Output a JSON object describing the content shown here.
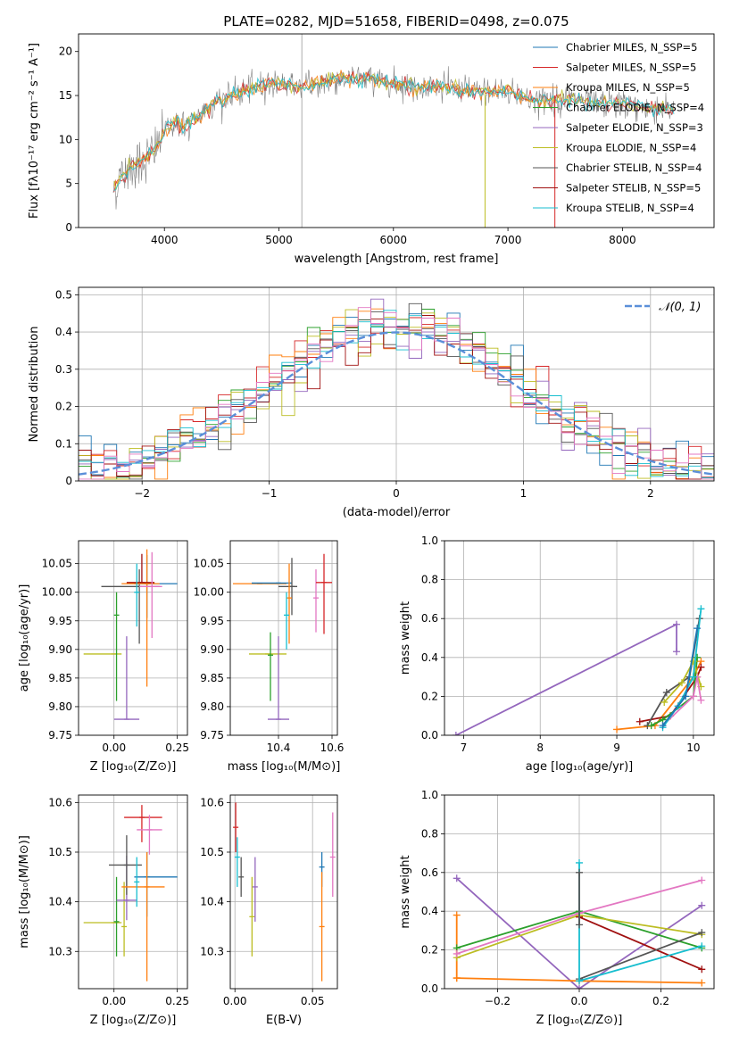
{
  "figure_title": "PLATE=0282, MJD=51658, FIBERID=0498, z=0.075",
  "colors": {
    "chabrier_miles": "#1f77b4",
    "salpeter_miles": "#d62728",
    "kroupa_miles": "#ff7f0e",
    "chabrier_elodie": "#2ca02c",
    "salpeter_elodie": "#9467bd",
    "kroupa_elodie": "#bcbd22",
    "chabrier_stelib": "#555555",
    "salpeter_stelib": "#a01010",
    "kroupa_stelib": "#17becf",
    "pink": "#e377c2",
    "normal_curve": "#5b8fd9",
    "data_spectrum": "#808080"
  },
  "chart_data": [
    {
      "id": "spectrum",
      "type": "line",
      "title": "PLATE=0282, MJD=51658, FIBERID=0498, z=0.075",
      "xlabel": "wavelength [Angstrom, rest frame]",
      "ylabel": "Flux [fλ10⁻¹⁷ erg cm⁻² s⁻¹ A⁻¹]",
      "xlim": [
        3250,
        8800
      ],
      "ylim": [
        0,
        22
      ],
      "xticks": [
        4000,
        5000,
        6000,
        7000,
        8000
      ],
      "yticks": [
        0,
        5,
        10,
        15,
        20
      ],
      "legend_position": "right",
      "legend": [
        {
          "label": "Chabrier MILES, N_SSP=5",
          "color": "#1f77b4"
        },
        {
          "label": "Salpeter MILES, N_SSP=5",
          "color": "#d62728"
        },
        {
          "label": "Kroupa MILES, N_SSP=5",
          "color": "#ff7f0e"
        },
        {
          "label": "Chabrier ELODIE, N_SSP=4",
          "color": "#2ca02c"
        },
        {
          "label": "Salpeter ELODIE, N_SSP=3",
          "color": "#9467bd"
        },
        {
          "label": "Kroupa ELODIE, N_SSP=4",
          "color": "#bcbd22"
        },
        {
          "label": "Chabrier STELIB, N_SSP=4",
          "color": "#555555"
        },
        {
          "label": "Salpeter STELIB, N_SSP=5",
          "color": "#a01010"
        },
        {
          "label": "Kroupa STELIB, N_SSP=4",
          "color": "#17becf"
        }
      ],
      "continuum_points": {
        "x": [
          3550,
          3700,
          3800,
          3900,
          4000,
          4100,
          4200,
          4300,
          4400,
          4600,
          4800,
          5000,
          5200,
          5400,
          5600,
          5800,
          6000,
          6200,
          6400,
          6600,
          6800,
          7000,
          7200,
          7400,
          7600,
          7800,
          8000,
          8200,
          8400
        ],
        "y": [
          4.5,
          7.0,
          7.5,
          8.5,
          11.0,
          12.0,
          11.5,
          12.5,
          14.0,
          15.0,
          16.0,
          16.5,
          16.0,
          16.5,
          17.0,
          17.0,
          16.5,
          16.0,
          16.0,
          15.5,
          15.5,
          15.5,
          14.5,
          14.5,
          14.5,
          14.0,
          14.0,
          13.5,
          13.5
        ]
      }
    },
    {
      "id": "residuals",
      "type": "line",
      "xlabel": "(data-model)/error",
      "ylabel": "Normed distribution",
      "xlim": [
        -2.5,
        2.5
      ],
      "ylim": [
        0,
        0.52
      ],
      "xticks": [
        -2,
        -1,
        0,
        1,
        2
      ],
      "yticks": [
        0.0,
        0.1,
        0.2,
        0.3,
        0.4,
        0.5
      ],
      "grid": true,
      "legend": [
        {
          "label": "𝒩(0, 1)",
          "style": "dashed"
        }
      ],
      "legend_position": "top-right",
      "normal_mu": 0,
      "normal_sigma": 1
    },
    {
      "id": "age_vs_Z",
      "type": "scatter",
      "xlabel": "Z [log₁₀(Z/Z⊙)]",
      "ylabel": "age  [log₁₀(age/yr)]",
      "xlim": [
        -0.14,
        0.29
      ],
      "ylim": [
        9.75,
        10.09
      ],
      "xticks": [
        0.0,
        0.25
      ],
      "xticklabels": [
        "0.00",
        "0.25"
      ],
      "yticks": [
        9.75,
        9.8,
        9.85,
        9.9,
        9.95,
        10.0,
        10.05
      ],
      "yticklabels": [
        "9.75",
        "9.80",
        "9.85",
        "9.90",
        "9.95",
        "10.00",
        "10.05"
      ],
      "grid": true,
      "points": [
        {
          "x": 0.0,
          "y": 9.892,
          "xerr": [
            0.12,
            0.03
          ],
          "yerr": [
            0.0,
            0.0
          ],
          "color": "#bcbd22"
        },
        {
          "x": 0.01,
          "y": 9.96,
          "xerr": [
            0.0,
            0.0
          ],
          "yerr": [
            0.15,
            0.04
          ],
          "color": "#2ca02c"
        },
        {
          "x": 0.05,
          "y": 9.778,
          "xerr": [
            0.05,
            0.05
          ],
          "yerr": [
            0.0,
            0.145
          ],
          "color": "#9467bd"
        },
        {
          "x": 0.1,
          "y": 10.01,
          "xerr": [
            0.15,
            0.08
          ],
          "yerr": [
            0.1,
            0.03
          ],
          "color": "#555555"
        },
        {
          "x": 0.13,
          "y": 10.015,
          "xerr": [
            0.05,
            0.12
          ],
          "yerr": [
            0.06,
            0.05
          ],
          "color": "#1f77b4"
        },
        {
          "x": 0.13,
          "y": 10.015,
          "xerr": [
            0.1,
            0.05
          ],
          "yerr": [
            0.18,
            0.06
          ],
          "color": "#ff7f0e"
        },
        {
          "x": 0.11,
          "y": 10.017,
          "xerr": [
            0.06,
            0.05
          ],
          "yerr": [
            0.0,
            0.05
          ],
          "color": "#a01010"
        },
        {
          "x": 0.15,
          "y": 10.01,
          "xerr": [
            0.05,
            0.04
          ],
          "yerr": [
            0.09,
            0.06
          ],
          "color": "#e377c2"
        },
        {
          "x": 0.09,
          "y": 10.0,
          "xerr": [
            0.0,
            0.0
          ],
          "yerr": [
            0.06,
            0.05
          ],
          "color": "#17becf"
        }
      ]
    },
    {
      "id": "age_vs_mass",
      "type": "scatter",
      "xlabel": "mass [log₁₀(M/M⊙)]",
      "xlim": [
        10.22,
        10.62
      ],
      "ylim": [
        9.75,
        10.09
      ],
      "xticks": [
        10.4,
        10.6
      ],
      "xticklabels": [
        "10.4",
        "10.6"
      ],
      "yticks": [
        9.75,
        9.8,
        9.85,
        9.9,
        9.95,
        10.0,
        10.05
      ],
      "yticklabels": [
        "9.75",
        "9.80",
        "9.85",
        "9.90",
        "9.95",
        "10.00",
        "10.05"
      ],
      "grid": true,
      "points": [
        {
          "x": 10.36,
          "y": 9.892,
          "xerr": [
            0.07,
            0.07
          ],
          "yerr": [
            0.0,
            0.0
          ],
          "color": "#bcbd22"
        },
        {
          "x": 10.37,
          "y": 9.89,
          "xerr": [
            0.0,
            0.0
          ],
          "yerr": [
            0.08,
            0.04
          ],
          "color": "#2ca02c"
        },
        {
          "x": 10.4,
          "y": 9.778,
          "xerr": [
            0.04,
            0.04
          ],
          "yerr": [
            0.0,
            0.145
          ],
          "color": "#9467bd"
        },
        {
          "x": 10.33,
          "y": 10.015,
          "xerr": [
            0.1,
            0.1
          ],
          "yerr": [
            0.0,
            0.0
          ],
          "color": "#ff7f0e"
        },
        {
          "x": 10.4,
          "y": 10.016,
          "xerr": [
            0.1,
            0.05
          ],
          "yerr": [
            0.0,
            0.0
          ],
          "color": "#1f77b4"
        },
        {
          "x": 10.45,
          "y": 10.01,
          "xerr": [
            0.05,
            0.02
          ],
          "yerr": [
            0.05,
            0.05
          ],
          "color": "#555555"
        },
        {
          "x": 10.44,
          "y": 9.99,
          "xerr": [
            0.0,
            0.0
          ],
          "yerr": [
            0.08,
            0.06
          ],
          "color": "#ff7f0e"
        },
        {
          "x": 10.43,
          "y": 9.96,
          "xerr": [
            0.0,
            0.0
          ],
          "yerr": [
            0.06,
            0.04
          ],
          "color": "#17becf"
        },
        {
          "x": 10.54,
          "y": 9.99,
          "xerr": [
            0.0,
            0.0
          ],
          "yerr": [
            0.06,
            0.05
          ],
          "color": "#e377c2"
        },
        {
          "x": 10.57,
          "y": 10.017,
          "xerr": [
            0.03,
            0.03
          ],
          "yerr": [
            0.09,
            0.05
          ],
          "color": "#d62728"
        }
      ]
    },
    {
      "id": "massweight_vs_age",
      "type": "line",
      "xlabel": "age  [log₁₀(age/yr)]",
      "ylabel": "mass weight",
      "xlim": [
        6.75,
        10.27
      ],
      "ylim": [
        0,
        1.0
      ],
      "xticks": [
        7,
        8,
        9,
        10
      ],
      "yticks": [
        0.0,
        0.2,
        0.4,
        0.6,
        0.8,
        1.0
      ],
      "yticklabels": [
        "0.0",
        "0.2",
        "0.4",
        "0.6",
        "0.8",
        "1.0"
      ],
      "grid": true,
      "series": [
        {
          "color": "#9467bd",
          "x": [
            6.9,
            9.78,
            9.78
          ],
          "y": [
            0.0,
            0.57,
            0.43
          ]
        },
        {
          "color": "#ff7f0e",
          "x": [
            9.0,
            9.5,
            10.0,
            10.1
          ],
          "y": [
            0.03,
            0.05,
            0.3,
            0.38
          ]
        },
        {
          "color": "#a01010",
          "x": [
            9.3,
            9.7,
            10.05,
            10.1
          ],
          "y": [
            0.07,
            0.1,
            0.3,
            0.35
          ]
        },
        {
          "color": "#555555",
          "x": [
            9.4,
            9.65,
            9.95,
            10.08
          ],
          "y": [
            0.05,
            0.22,
            0.3,
            0.6
          ]
        },
        {
          "color": "#2ca02c",
          "x": [
            9.45,
            9.6,
            10.0,
            10.05
          ],
          "y": [
            0.05,
            0.08,
            0.2,
            0.4
          ]
        },
        {
          "color": "#bcbd22",
          "x": [
            9.62,
            9.85,
            10.0,
            10.1
          ],
          "y": [
            0.17,
            0.27,
            0.38,
            0.25
          ]
        },
        {
          "color": "#e377c2",
          "x": [
            9.6,
            10.0,
            10.05,
            10.1
          ],
          "y": [
            0.05,
            0.2,
            0.3,
            0.18
          ]
        },
        {
          "color": "#17becf",
          "x": [
            9.6,
            9.8,
            10.0,
            10.1
          ],
          "y": [
            0.04,
            0.15,
            0.3,
            0.65
          ]
        },
        {
          "color": "#1f77b4",
          "x": [
            9.6,
            9.9,
            10.05
          ],
          "y": [
            0.05,
            0.2,
            0.55
          ]
        }
      ]
    },
    {
      "id": "mass_vs_Z",
      "type": "scatter",
      "xlabel": "Z [log₁₀(Z/Z⊙)]",
      "ylabel": "mass [log₁₀(M/M⊙)]",
      "xlim": [
        -0.14,
        0.29
      ],
      "ylim": [
        10.225,
        10.615
      ],
      "xticks": [
        0.0,
        0.25
      ],
      "xticklabels": [
        "0.00",
        "0.25"
      ],
      "yticks": [
        10.3,
        10.4,
        10.5,
        10.6
      ],
      "yticklabels": [
        "10.3",
        "10.4",
        "10.5",
        "10.6"
      ],
      "grid": true,
      "points": [
        {
          "x": 0.0,
          "y": 10.358,
          "xerr": [
            0.12,
            0.03
          ],
          "yerr": [
            0.0,
            0.0
          ],
          "color": "#bcbd22"
        },
        {
          "x": 0.01,
          "y": 10.36,
          "xerr": [
            0.0,
            0.0
          ],
          "yerr": [
            0.07,
            0.09
          ],
          "color": "#2ca02c"
        },
        {
          "x": 0.04,
          "y": 10.35,
          "xerr": [
            0.0,
            0.0
          ],
          "yerr": [
            0.06,
            0.09
          ],
          "color": "#bcbd22"
        },
        {
          "x": 0.05,
          "y": 10.403,
          "xerr": [
            0.04,
            0.04
          ],
          "yerr": [
            0.04,
            0.09
          ],
          "color": "#9467bd"
        },
        {
          "x": 0.05,
          "y": 10.474,
          "xerr": [
            0.07,
            0.06
          ],
          "yerr": [
            0.06,
            0.06
          ],
          "color": "#555555"
        },
        {
          "x": 0.13,
          "y": 10.45,
          "xerr": [
            0.05,
            0.12
          ],
          "yerr": [
            0.08,
            0.05
          ],
          "color": "#1f77b4"
        },
        {
          "x": 0.13,
          "y": 10.43,
          "xerr": [
            0.1,
            0.07
          ],
          "yerr": [
            0.19,
            0.07
          ],
          "color": "#ff7f0e"
        },
        {
          "x": 0.11,
          "y": 10.57,
          "xerr": [
            0.07,
            0.08
          ],
          "yerr": [
            0.05,
            0.025
          ],
          "color": "#d62728"
        },
        {
          "x": 0.14,
          "y": 10.545,
          "xerr": [
            0.05,
            0.05
          ],
          "yerr": [
            0.05,
            0.03
          ],
          "color": "#e377c2"
        },
        {
          "x": 0.09,
          "y": 10.44,
          "xerr": [
            0.0,
            0.0
          ],
          "yerr": [
            0.05,
            0.05
          ],
          "color": "#17becf"
        }
      ]
    },
    {
      "id": "mass_vs_ebv",
      "type": "scatter",
      "xlabel": "E(B-V)",
      "xlim": [
        -0.003,
        0.066
      ],
      "ylim": [
        10.225,
        10.615
      ],
      "xticks": [
        0.0,
        0.05
      ],
      "xticklabels": [
        "0.00",
        "0.05"
      ],
      "yticks": [
        10.3,
        10.4,
        10.5,
        10.6
      ],
      "yticklabels": [
        "10.3",
        "10.4",
        "10.5",
        "10.6"
      ],
      "grid": true,
      "points": [
        {
          "x": 0.0005,
          "y": 10.55,
          "xerr": [
            0,
            0
          ],
          "yerr": [
            0.05,
            0.05
          ],
          "color": "#d62728"
        },
        {
          "x": 0.0015,
          "y": 10.49,
          "xerr": [
            0,
            0
          ],
          "yerr": [
            0.06,
            0.04
          ],
          "color": "#17becf"
        },
        {
          "x": 0.004,
          "y": 10.45,
          "xerr": [
            0,
            0
          ],
          "yerr": [
            0.04,
            0.04
          ],
          "color": "#555555"
        },
        {
          "x": 0.011,
          "y": 10.37,
          "xerr": [
            0,
            0
          ],
          "yerr": [
            0.08,
            0.08
          ],
          "color": "#bcbd22"
        },
        {
          "x": 0.013,
          "y": 10.43,
          "xerr": [
            0,
            0
          ],
          "yerr": [
            0.07,
            0.06
          ],
          "color": "#9467bd"
        },
        {
          "x": 0.056,
          "y": 10.47,
          "xerr": [
            0,
            0
          ],
          "yerr": [
            0.04,
            0.03
          ],
          "color": "#1f77b4"
        },
        {
          "x": 0.056,
          "y": 10.35,
          "xerr": [
            0,
            0
          ],
          "yerr": [
            0.11,
            0.11
          ],
          "color": "#ff7f0e"
        },
        {
          "x": 0.063,
          "y": 10.49,
          "xerr": [
            0,
            0
          ],
          "yerr": [
            0.08,
            0.09
          ],
          "color": "#e377c2"
        }
      ]
    },
    {
      "id": "massweight_vs_Z",
      "type": "line",
      "xlabel": "Z [log₁₀(Z/Z⊙)]",
      "ylabel": "mass weight",
      "xlim": [
        -0.33,
        0.33
      ],
      "ylim": [
        0,
        1.0
      ],
      "xticks": [
        -0.2,
        0.0,
        0.2
      ],
      "xticklabels": [
        "−0.2",
        "0.0",
        "0.2"
      ],
      "yticks": [
        0.0,
        0.2,
        0.4,
        0.6,
        0.8,
        1.0
      ],
      "yticklabels": [
        "0.0",
        "0.2",
        "0.4",
        "0.6",
        "0.8",
        "1.0"
      ],
      "grid": true,
      "series": [
        {
          "color": "#9467bd",
          "x": [
            -0.3,
            0.0,
            0.3
          ],
          "y": [
            0.57,
            0.0,
            0.43
          ]
        },
        {
          "color": "#ff7f0e",
          "x": [
            -0.3,
            0.0,
            0.3
          ],
          "y": [
            0.055,
            0.04,
            0.03
          ]
        },
        {
          "color": "#ff7f0e",
          "x": [
            -0.3,
            -0.3
          ],
          "y": [
            0.055,
            0.38
          ]
        },
        {
          "color": "#2ca02c",
          "x": [
            -0.3,
            0.0,
            0.3
          ],
          "y": [
            0.21,
            0.4,
            0.21
          ]
        },
        {
          "color": "#bcbd22",
          "x": [
            -0.3,
            0.0,
            0.3
          ],
          "y": [
            0.16,
            0.38,
            0.28
          ]
        },
        {
          "color": "#a01010",
          "x": [
            0.0,
            0.3
          ],
          "y": [
            0.37,
            0.1
          ]
        },
        {
          "color": "#555555",
          "x": [
            0.0,
            0.3
          ],
          "y": [
            0.05,
            0.29
          ]
        },
        {
          "color": "#e377c2",
          "x": [
            -0.3,
            0.0,
            0.3
          ],
          "y": [
            0.18,
            0.39,
            0.56
          ]
        },
        {
          "color": "#17becf",
          "x": [
            0.0,
            0.0,
            0.3
          ],
          "y": [
            0.65,
            0.04,
            0.22
          ]
        },
        {
          "color": "#555555",
          "x": [
            0.0,
            0.0
          ],
          "y": [
            0.33,
            0.6
          ]
        }
      ]
    }
  ]
}
